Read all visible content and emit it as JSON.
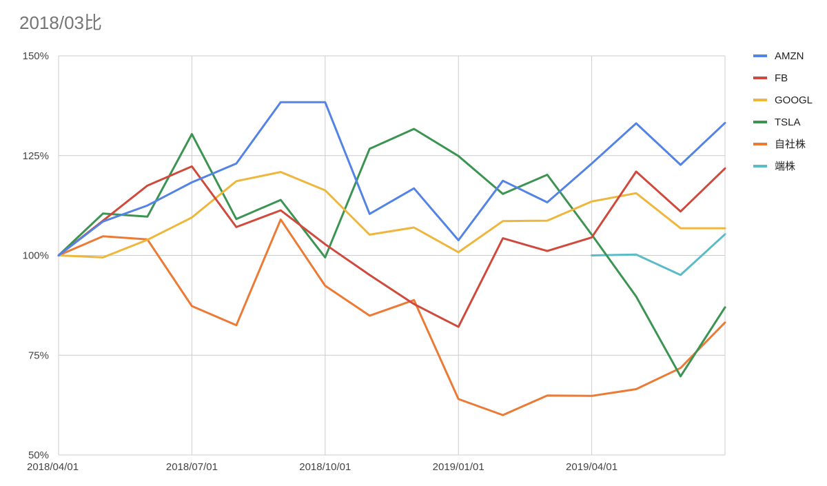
{
  "chart_data": {
    "type": "line",
    "title": "2018/03比",
    "xlabel": "",
    "ylabel": "",
    "x_tick_labels": [
      "2018/04/01",
      "2018/07/01",
      "2018/10/01",
      "2019/01/01",
      "2019/04/01"
    ],
    "x_tick_index": [
      0,
      3,
      6,
      9,
      12
    ],
    "y_tick_labels": [
      "50%",
      "75%",
      "100%",
      "125%",
      "150%"
    ],
    "y_tick_values": [
      50,
      75,
      100,
      125,
      150
    ],
    "ylim": [
      50,
      150
    ],
    "x_count": 16,
    "grid": true,
    "legend_position": "right",
    "series": [
      {
        "name": "AMZN",
        "color": "#5383e5",
        "start_index": 0,
        "values": [
          100,
          108.5,
          112.5,
          118.3,
          123,
          138.4,
          138.4,
          110.4,
          116.8,
          103.8,
          118.7,
          113.3,
          123,
          133.1,
          122.7,
          133.2
        ]
      },
      {
        "name": "FB",
        "color": "#cf4a3c",
        "start_index": 0,
        "values": [
          100,
          108.7,
          117.5,
          122.3,
          107.1,
          111.3,
          102.8,
          95.1,
          87.8,
          82.1,
          104.3,
          101.1,
          104.5,
          121,
          111,
          121.8
        ]
      },
      {
        "name": "GOOGL",
        "color": "#efb63d",
        "start_index": 0,
        "values": [
          100,
          99.5,
          103.9,
          109.5,
          118.6,
          120.9,
          116.3,
          105.2,
          107,
          100.8,
          108.6,
          108.7,
          113.5,
          115.6,
          106.8,
          106.8
        ]
      },
      {
        "name": "TSLA",
        "color": "#3c9452",
        "start_index": 0,
        "values": [
          100,
          110.5,
          109.7,
          130.4,
          109.1,
          113.9,
          99.5,
          126.7,
          131.7,
          124.9,
          115.4,
          120.2,
          105.2,
          89.7,
          69.7,
          87
        ]
      },
      {
        "name": "自社株",
        "color": "#ec7a35",
        "start_index": 0,
        "values": [
          100,
          104.8,
          104,
          87.3,
          82.5,
          109,
          92.4,
          84.9,
          88.8,
          64,
          60,
          64.9,
          64.8,
          66.5,
          71.8,
          83.2
        ]
      },
      {
        "name": "端株",
        "color": "#5bbcc7",
        "start_index": 12,
        "values": [
          100,
          100.2,
          95.1,
          105.3
        ]
      }
    ]
  }
}
